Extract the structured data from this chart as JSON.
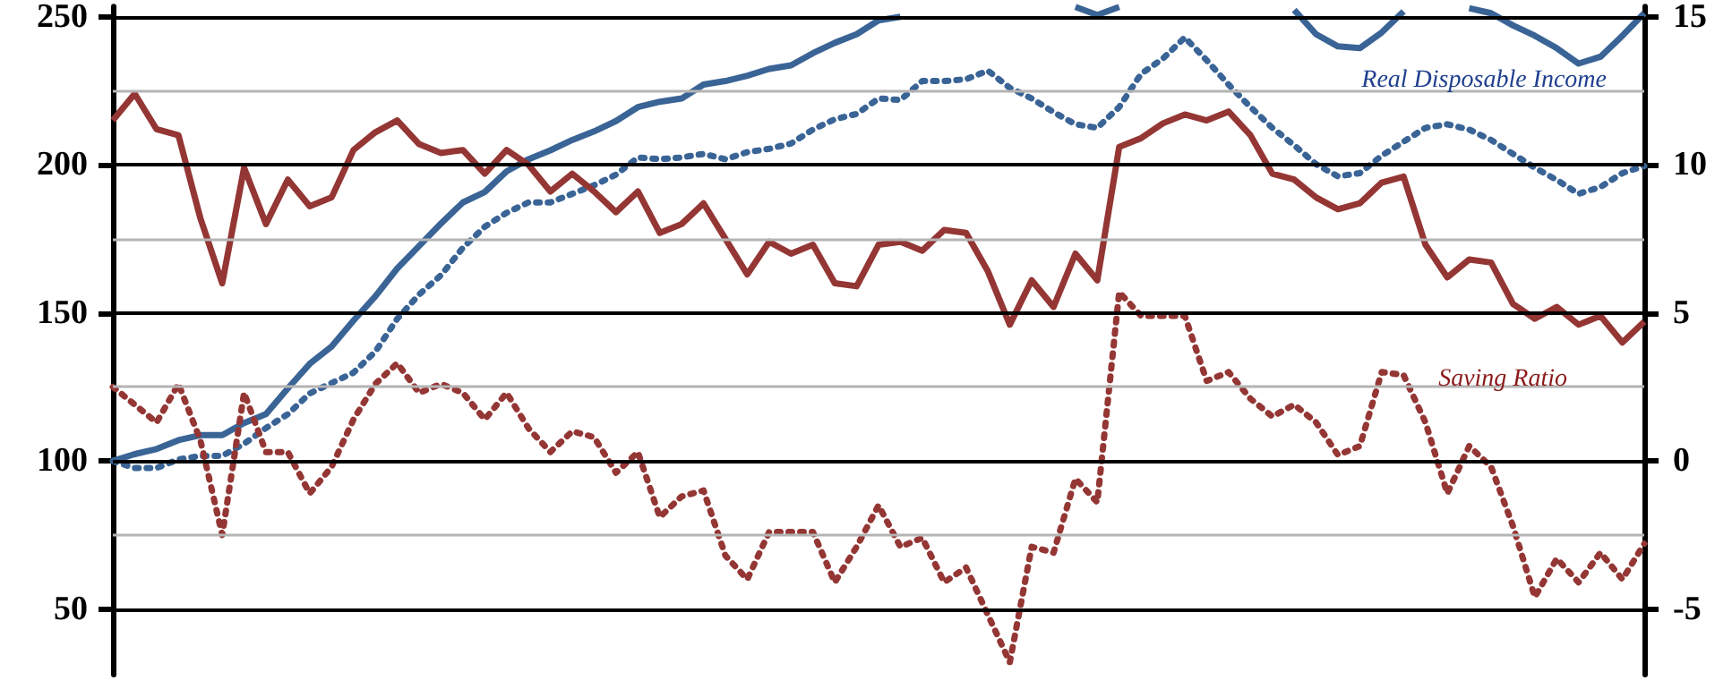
{
  "chart_data": {
    "type": "line",
    "categories": [
      null,
      null,
      null,
      null,
      null,
      null,
      null,
      null,
      null,
      null,
      null,
      null,
      null,
      null,
      null,
      null,
      null,
      null,
      null,
      null,
      null,
      null,
      null,
      null,
      null,
      null,
      null,
      null,
      null,
      null,
      null,
      null,
      null,
      null,
      null,
      null,
      null,
      null,
      null,
      null,
      null,
      null,
      null,
      null,
      null,
      null,
      null,
      null,
      null,
      null,
      null,
      null,
      null,
      null,
      null,
      null,
      null,
      null,
      null,
      null,
      null,
      null,
      null,
      null,
      null,
      null,
      null,
      null,
      null,
      null,
      null
    ],
    "marker": "none",
    "grid": true,
    "ylim": [
      27.8,
      253.5
    ],
    "yticks": [
      50,
      {
        "value": 75,
        "label": null
      },
      100,
      {
        "value": 125,
        "label": null
      },
      150,
      {
        "value": 175,
        "label": null
      },
      200,
      {
        "value": 225,
        "label": null
      },
      250
    ],
    "y2lim": [
      -7.22,
      15.35
    ],
    "y2ticks": [
      -5,
      0,
      5,
      10,
      15
    ],
    "annotations": [
      "Real Disposable Income",
      "Saving Ratio"
    ],
    "series": [
      {
        "color": "#3a6496",
        "line_style": "solid",
        "values": [
          100.0,
          102.3,
          104.0,
          107.0,
          108.7,
          108.7,
          112.8,
          115.8,
          124.5,
          132.8,
          138.6,
          147.4,
          155.6,
          165.0,
          172.6,
          180.2,
          187.3,
          190.8,
          197.8,
          201.9,
          204.9,
          208.4,
          211.3,
          214.8,
          219.5,
          221.3,
          222.4,
          227.1,
          228.3,
          230.1,
          232.4,
          233.6,
          237.7,
          241.2,
          244.1,
          248.8,
          250.0,
          null,
          null,
          null,
          null,
          null,
          null,
          null,
          253.3,
          250.6,
          253.3,
          null,
          null,
          null,
          null,
          null,
          null,
          null,
          252.3,
          244.1,
          240.0,
          239.4,
          244.7,
          251.8,
          null,
          null,
          252.9,
          251.2,
          247.1,
          243.6,
          239.4,
          234.2,
          236.5,
          243.6,
          251.2
        ]
      },
      {
        "color": "#3a6496",
        "line_style": "dotted",
        "values": [
          100.0,
          97.6,
          97.6,
          100.5,
          101.7,
          101.7,
          105.8,
          111.1,
          115.8,
          122.8,
          126.3,
          129.8,
          136.9,
          148.0,
          156.2,
          162.7,
          172.0,
          179.1,
          183.8,
          187.3,
          187.3,
          190.2,
          193.1,
          196.7,
          202.5,
          201.9,
          202.5,
          203.7,
          201.9,
          204.3,
          205.4,
          207.2,
          211.9,
          215.4,
          217.2,
          222.4,
          221.9,
          228.3,
          228.3,
          228.9,
          231.8,
          226.0,
          222.4,
          217.8,
          213.7,
          212.5,
          219.5,
          230.7,
          235.9,
          243.0,
          235.3,
          227.1,
          219.5,
          212.5,
          206.6,
          200.2,
          196.1,
          197.2,
          203.1,
          207.8,
          212.5,
          213.7,
          211.9,
          208.4,
          203.7,
          199.0,
          194.9,
          190.2,
          192.5,
          197.2,
          199.6
        ]
      },
      {
        "color": "#943634",
        "line_style": "solid",
        "axis": "y2",
        "values": [
          11.5,
          12.4,
          11.2,
          11.0,
          8.2,
          6.0,
          9.9,
          8.0,
          9.5,
          8.6,
          8.9,
          10.5,
          11.1,
          11.5,
          10.7,
          10.4,
          10.5,
          9.7,
          10.5,
          10.0,
          9.1,
          9.7,
          9.1,
          8.4,
          9.1,
          7.7,
          8.0,
          8.7,
          7.5,
          6.3,
          7.4,
          7.0,
          7.3,
          6.0,
          5.9,
          7.3,
          7.4,
          7.1,
          7.8,
          7.7,
          6.4,
          4.6,
          6.1,
          5.2,
          7.0,
          6.1,
          10.6,
          10.9,
          11.4,
          11.7,
          11.5,
          11.8,
          11.0,
          9.7,
          9.5,
          8.9,
          8.5,
          8.7,
          9.4,
          9.6,
          7.3,
          6.2,
          6.8,
          6.7,
          5.3,
          4.8,
          5.2,
          4.6,
          4.9,
          4.0,
          4.7
        ]
      },
      {
        "color": "#943634",
        "line_style": "dotted",
        "axis": "y2",
        "values": [
          2.5,
          1.9,
          1.3,
          2.6,
          0.7,
          -2.5,
          2.3,
          0.3,
          0.3,
          -1.1,
          -0.2,
          1.4,
          2.6,
          3.3,
          2.3,
          2.6,
          2.3,
          1.4,
          2.3,
          1.1,
          0.3,
          1.0,
          0.8,
          -0.4,
          0.3,
          -1.9,
          -1.2,
          -1.0,
          -3.2,
          -4.0,
          -2.4,
          -2.4,
          -2.4,
          -4.1,
          -2.9,
          -1.5,
          -2.9,
          -2.6,
          -4.1,
          -3.6,
          -5.2,
          -6.8,
          -2.9,
          -3.1,
          -0.6,
          -1.4,
          5.7,
          4.9,
          4.9,
          4.9,
          2.7,
          3.0,
          2.1,
          1.5,
          1.9,
          1.3,
          0.2,
          0.5,
          3.0,
          2.9,
          1.3,
          -1.1,
          0.5,
          -0.2,
          -2.2,
          -4.6,
          -3.3,
          -4.1,
          -3.1,
          -4.0,
          -2.8
        ]
      }
    ]
  }
}
